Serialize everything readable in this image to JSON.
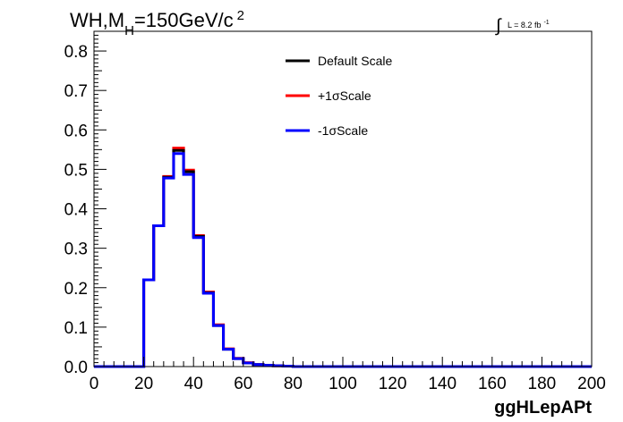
{
  "header": {
    "title_main": "WH,M",
    "title_sub": "H",
    "title_rest": "=150GeV/c",
    "title_sup": "2",
    "lumi_integral": "∫",
    "lumi_text": "L = 8.2 fb",
    "lumi_sup": "-1"
  },
  "chart_data": {
    "type": "line",
    "title": "WH,MH=150GeV/c2",
    "xlabel": "ggHLepAPt",
    "ylabel": "",
    "xlim": [
      0,
      200
    ],
    "ylim": [
      0,
      0.85
    ],
    "x_ticks": [
      "0",
      "20",
      "40",
      "60",
      "80",
      "100",
      "120",
      "140",
      "160",
      "180",
      "200"
    ],
    "y_ticks": [
      "0.0",
      "0.1",
      "0.2",
      "0.3",
      "0.4",
      "0.5",
      "0.6",
      "0.7",
      "0.8"
    ],
    "grid": false,
    "legend_position": "top-center",
    "bin_edges": [
      0,
      4,
      8,
      12,
      16,
      20,
      24,
      28,
      32,
      36,
      40,
      44,
      48,
      52,
      56,
      60,
      64,
      68,
      72,
      76,
      80,
      84,
      88,
      92,
      96,
      100,
      104,
      108,
      112,
      116,
      120,
      124,
      128,
      132,
      136,
      140,
      144,
      148,
      152,
      156,
      160,
      164,
      168,
      172,
      176,
      180,
      184,
      188,
      192,
      196,
      200
    ],
    "series": [
      {
        "name": "Default Scale",
        "color": "#000000",
        "values": [
          0,
          0,
          0,
          0,
          0,
          0.22,
          0.357,
          0.48,
          0.548,
          0.494,
          0.33,
          0.187,
          0.104,
          0.044,
          0.02,
          0.009,
          0.005,
          0.003,
          0.002,
          0.001,
          0,
          0,
          0,
          0,
          0,
          0,
          0,
          0,
          0,
          0,
          0,
          0,
          0,
          0,
          0,
          0,
          0,
          0,
          0,
          0,
          0,
          0,
          0,
          0,
          0,
          0,
          0,
          0,
          0,
          0
        ]
      },
      {
        "name": "+1σScale",
        "color": "#ff0000",
        "values": [
          0,
          0,
          0,
          0,
          0,
          0.22,
          0.357,
          0.482,
          0.554,
          0.498,
          0.332,
          0.189,
          0.106,
          0.045,
          0.021,
          0.01,
          0.005,
          0.003,
          0.002,
          0.001,
          0,
          0,
          0,
          0,
          0,
          0,
          0,
          0,
          0,
          0,
          0,
          0,
          0,
          0,
          0,
          0,
          0,
          0,
          0,
          0,
          0,
          0,
          0,
          0,
          0,
          0,
          0,
          0,
          0,
          0
        ]
      },
      {
        "name": "-1σScale",
        "color": "#0000ff",
        "values": [
          0,
          0,
          0,
          0,
          0,
          0.22,
          0.357,
          0.478,
          0.54,
          0.487,
          0.327,
          0.186,
          0.104,
          0.044,
          0.02,
          0.009,
          0.005,
          0.003,
          0.002,
          0.001,
          0,
          0,
          0,
          0,
          0,
          0,
          0,
          0,
          0,
          0,
          0,
          0,
          0,
          0,
          0,
          0,
          0,
          0,
          0,
          0,
          0,
          0,
          0,
          0,
          0,
          0,
          0,
          0,
          0,
          0
        ]
      }
    ]
  }
}
